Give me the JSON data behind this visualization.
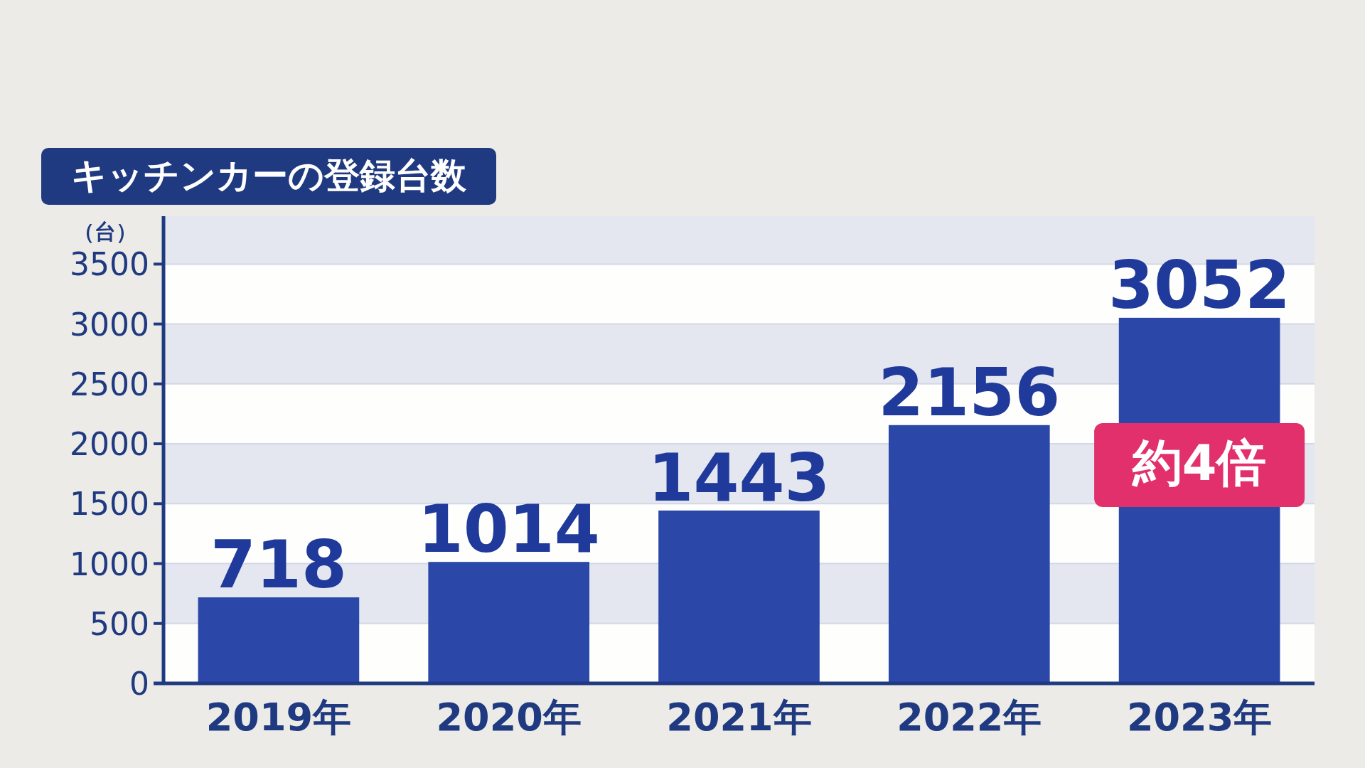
{
  "chart_data": {
    "type": "bar",
    "title": "キッチンカーの登録台数",
    "ylabel": "（台）",
    "categories": [
      "2019年",
      "2020年",
      "2021年",
      "2022年",
      "2023年"
    ],
    "values": [
      718,
      1014,
      1443,
      2156,
      3052
    ],
    "color": "#2b48a8",
    "ylim": [
      0,
      3900
    ],
    "yticks": [
      0,
      500,
      1000,
      1500,
      2000,
      2500,
      3000,
      3500
    ],
    "grid": "y",
    "data_labels": true,
    "annotations": [
      "約4倍"
    ]
  }
}
